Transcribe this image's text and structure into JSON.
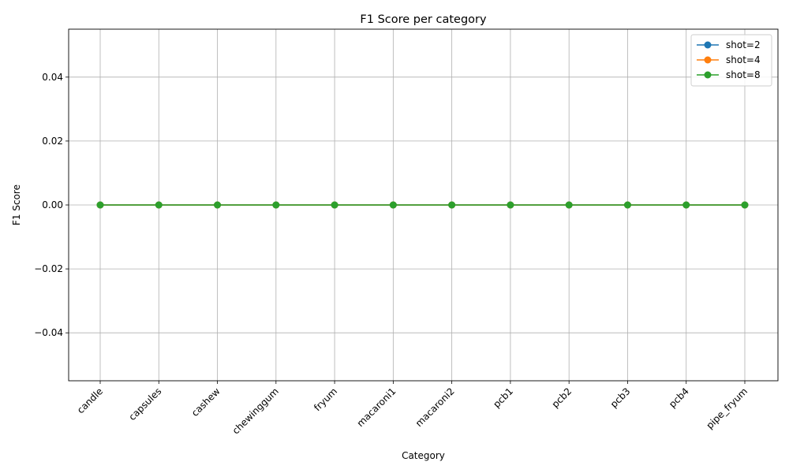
{
  "chart_data": {
    "type": "line",
    "title": "F1 Score per category",
    "xlabel": "Category",
    "ylabel": "F1 Score",
    "categories": [
      "candle",
      "capsules",
      "cashew",
      "chewinggum",
      "fryum",
      "macaroni1",
      "macaroni2",
      "pcb1",
      "pcb2",
      "pcb3",
      "pcb4",
      "pipe_fryum"
    ],
    "ylim": [
      -0.055,
      0.055
    ],
    "yticks": [
      -0.04,
      -0.02,
      0.0,
      0.02,
      0.04
    ],
    "ytick_labels": [
      "−0.04",
      "−0.02",
      "0.00",
      "0.02",
      "0.04"
    ],
    "grid": true,
    "legend_position": "top-right",
    "marker": "circle",
    "series": [
      {
        "name": "shot=2",
        "color": "#1f77b4",
        "values": [
          0,
          0,
          0,
          0,
          0,
          0,
          0,
          0,
          0,
          0,
          0,
          0
        ]
      },
      {
        "name": "shot=4",
        "color": "#ff7f0e",
        "values": [
          0,
          0,
          0,
          0,
          0,
          0,
          0,
          0,
          0,
          0,
          0,
          0
        ]
      },
      {
        "name": "shot=8",
        "color": "#2ca02c",
        "values": [
          0,
          0,
          0,
          0,
          0,
          0,
          0,
          0,
          0,
          0,
          0,
          0
        ]
      }
    ]
  }
}
